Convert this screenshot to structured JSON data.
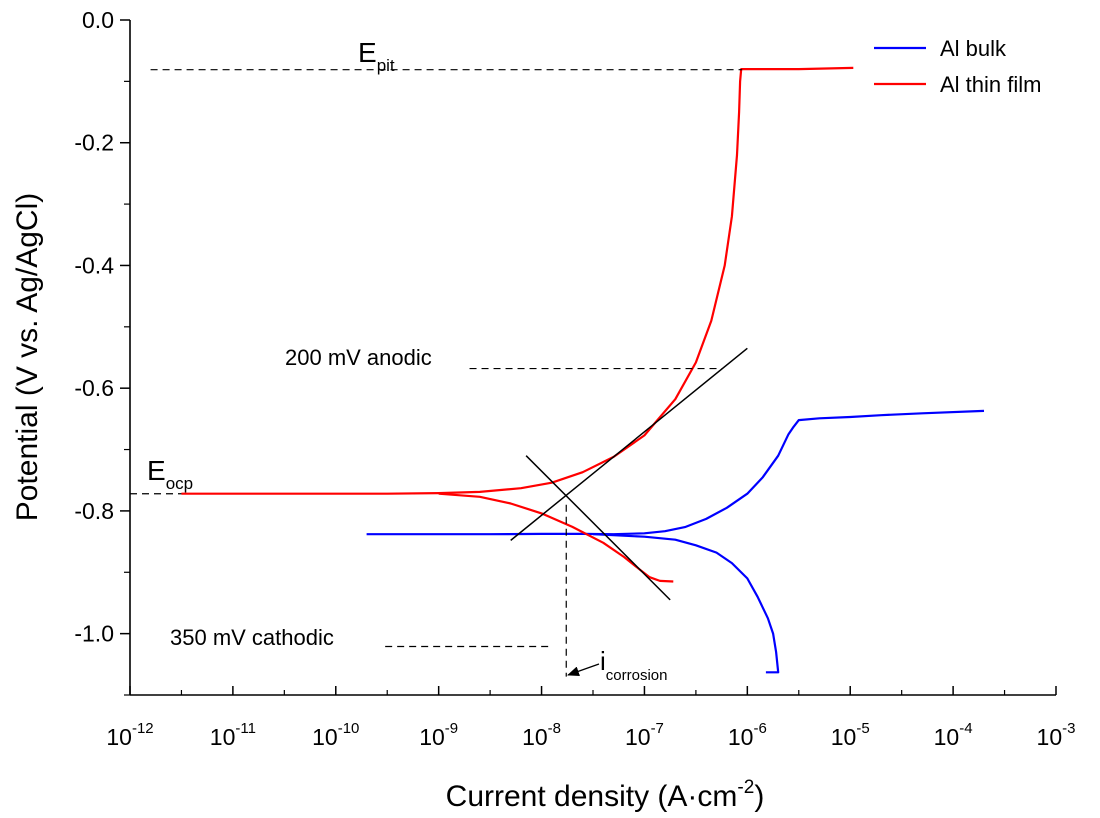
{
  "chart_data": {
    "type": "line",
    "xscale": "log10",
    "xlabel_main": "Current density (A·cm",
    "xlabel_sup": "-2",
    "xlabel_end": ")",
    "ylabel": "Potential (V vs. Ag/AgCl)",
    "xlim_exp": [
      -12,
      -3
    ],
    "ylim": [
      -1.1,
      0.0
    ],
    "x_ticks": [
      {
        "exp": -12,
        "base": "10",
        "sup": "-12"
      },
      {
        "exp": -11,
        "base": "10",
        "sup": "-11"
      },
      {
        "exp": -10,
        "base": "10",
        "sup": "-10"
      },
      {
        "exp": -9,
        "base": "10",
        "sup": "-9"
      },
      {
        "exp": -8,
        "base": "10",
        "sup": "-8"
      },
      {
        "exp": -7,
        "base": "10",
        "sup": "-7"
      },
      {
        "exp": -6,
        "base": "10",
        "sup": "-6"
      },
      {
        "exp": -5,
        "base": "10",
        "sup": "-5"
      },
      {
        "exp": -4,
        "base": "10",
        "sup": "-4"
      },
      {
        "exp": -3,
        "base": "10",
        "sup": "-3"
      }
    ],
    "y_ticks": [
      {
        "value": 0.0,
        "label": "0.0"
      },
      {
        "value": -0.2,
        "label": "-0.2"
      },
      {
        "value": -0.4,
        "label": "-0.4"
      },
      {
        "value": -0.6,
        "label": "-0.6"
      },
      {
        "value": -0.8,
        "label": "-0.8"
      },
      {
        "value": -1.0,
        "label": "-1.0"
      }
    ],
    "legend": [
      {
        "name": "Al bulk",
        "color": "#0000ff"
      },
      {
        "name": "Al thin film",
        "color": "#ff0000"
      }
    ],
    "legend_position": "top-right",
    "series": [
      {
        "name": "Al bulk",
        "color": "#0000ff",
        "points": [
          [
            -9.7,
            -0.838
          ],
          [
            -9.0,
            -0.838
          ],
          [
            -8.5,
            -0.838
          ],
          [
            -8.0,
            -0.8375
          ],
          [
            -7.6,
            -0.8375
          ],
          [
            -7.3,
            -0.838
          ],
          [
            -7.0,
            -0.8365
          ],
          [
            -6.8,
            -0.833
          ],
          [
            -6.6,
            -0.826
          ],
          [
            -6.4,
            -0.813
          ],
          [
            -6.2,
            -0.795
          ],
          [
            -6.0,
            -0.772
          ],
          [
            -5.85,
            -0.745
          ],
          [
            -5.7,
            -0.71
          ],
          [
            -5.6,
            -0.675
          ],
          [
            -5.55,
            -0.663
          ],
          [
            -5.5,
            -0.652
          ],
          [
            -5.3,
            -0.649
          ],
          [
            -5.0,
            -0.647
          ],
          [
            -4.7,
            -0.644
          ],
          [
            -4.3,
            -0.641
          ],
          [
            -3.7,
            -0.637
          ]
        ]
      },
      {
        "name": "Al bulk (cathodic branch)",
        "color": "#0000ff",
        "points": [
          [
            -7.5,
            -0.838
          ],
          [
            -7.0,
            -0.842
          ],
          [
            -6.7,
            -0.847
          ],
          [
            -6.5,
            -0.856
          ],
          [
            -6.3,
            -0.868
          ],
          [
            -6.15,
            -0.885
          ],
          [
            -6.0,
            -0.91
          ],
          [
            -5.9,
            -0.94
          ],
          [
            -5.8,
            -0.975
          ],
          [
            -5.75,
            -1.0
          ],
          [
            -5.72,
            -1.03
          ],
          [
            -5.7,
            -1.063
          ],
          [
            -5.82,
            -1.063
          ]
        ]
      },
      {
        "name": "Al thin film",
        "color": "#ff0000",
        "points": [
          [
            -11.5,
            -0.772
          ],
          [
            -11.0,
            -0.772
          ],
          [
            -10.0,
            -0.772
          ],
          [
            -9.5,
            -0.772
          ],
          [
            -9.0,
            -0.771
          ],
          [
            -8.6,
            -0.769
          ],
          [
            -8.2,
            -0.763
          ],
          [
            -7.9,
            -0.754
          ],
          [
            -7.6,
            -0.737
          ],
          [
            -7.3,
            -0.712
          ],
          [
            -7.0,
            -0.677
          ],
          [
            -6.7,
            -0.618
          ],
          [
            -6.5,
            -0.558
          ],
          [
            -6.35,
            -0.49
          ],
          [
            -6.22,
            -0.4
          ],
          [
            -6.15,
            -0.32
          ],
          [
            -6.1,
            -0.22
          ],
          [
            -6.08,
            -0.15
          ],
          [
            -6.07,
            -0.1
          ],
          [
            -6.06,
            -0.08
          ],
          [
            -5.5,
            -0.08
          ],
          [
            -4.97,
            -0.078
          ]
        ]
      },
      {
        "name": "Al thin film (cathodic branch)",
        "color": "#ff0000",
        "points": [
          [
            -9.0,
            -0.772
          ],
          [
            -8.6,
            -0.777
          ],
          [
            -8.3,
            -0.788
          ],
          [
            -8.0,
            -0.804
          ],
          [
            -7.7,
            -0.826
          ],
          [
            -7.4,
            -0.852
          ],
          [
            -7.2,
            -0.875
          ],
          [
            -7.05,
            -0.895
          ],
          [
            -6.95,
            -0.908
          ],
          [
            -6.85,
            -0.914
          ],
          [
            -6.72,
            -0.915
          ]
        ]
      }
    ],
    "tangent_lines": [
      {
        "name": "anodic Tafel fit",
        "from": [
          -8.3,
          -0.848
        ],
        "to": [
          -6.0,
          -0.535
        ]
      },
      {
        "name": "cathodic Tafel fit",
        "from": [
          -8.15,
          -0.71
        ],
        "to": [
          -6.75,
          -0.945
        ]
      }
    ],
    "guide_lines": [
      {
        "name": "epit guide",
        "from": [
          -11.8,
          -0.081
        ],
        "to": [
          -6.05,
          -0.081
        ]
      },
      {
        "name": "anodic 200mV guide",
        "from": [
          -8.7,
          -0.568
        ],
        "to": [
          -6.24,
          -0.568
        ]
      },
      {
        "name": "eocp guide",
        "from": [
          -12.0,
          -0.772
        ],
        "to": [
          -11.5,
          -0.772
        ]
      },
      {
        "name": "cathodic 350mV guide",
        "from": [
          -9.52,
          -1.021
        ],
        "to": [
          -7.92,
          -1.021
        ]
      },
      {
        "name": "icorr vertical guide",
        "from": [
          -7.76,
          -0.79
        ],
        "to": [
          -7.76,
          -1.07
        ]
      }
    ],
    "annotations": [
      {
        "id": "epit",
        "base": "E",
        "sub": "pit"
      },
      {
        "id": "eocp",
        "base": "E",
        "sub": "ocp"
      },
      {
        "id": "anodic",
        "text": "200 mV anodic"
      },
      {
        "id": "cathodic",
        "text": "350 mV cathodic"
      },
      {
        "id": "icorr",
        "base": "i",
        "sub": "corrosion"
      }
    ]
  }
}
